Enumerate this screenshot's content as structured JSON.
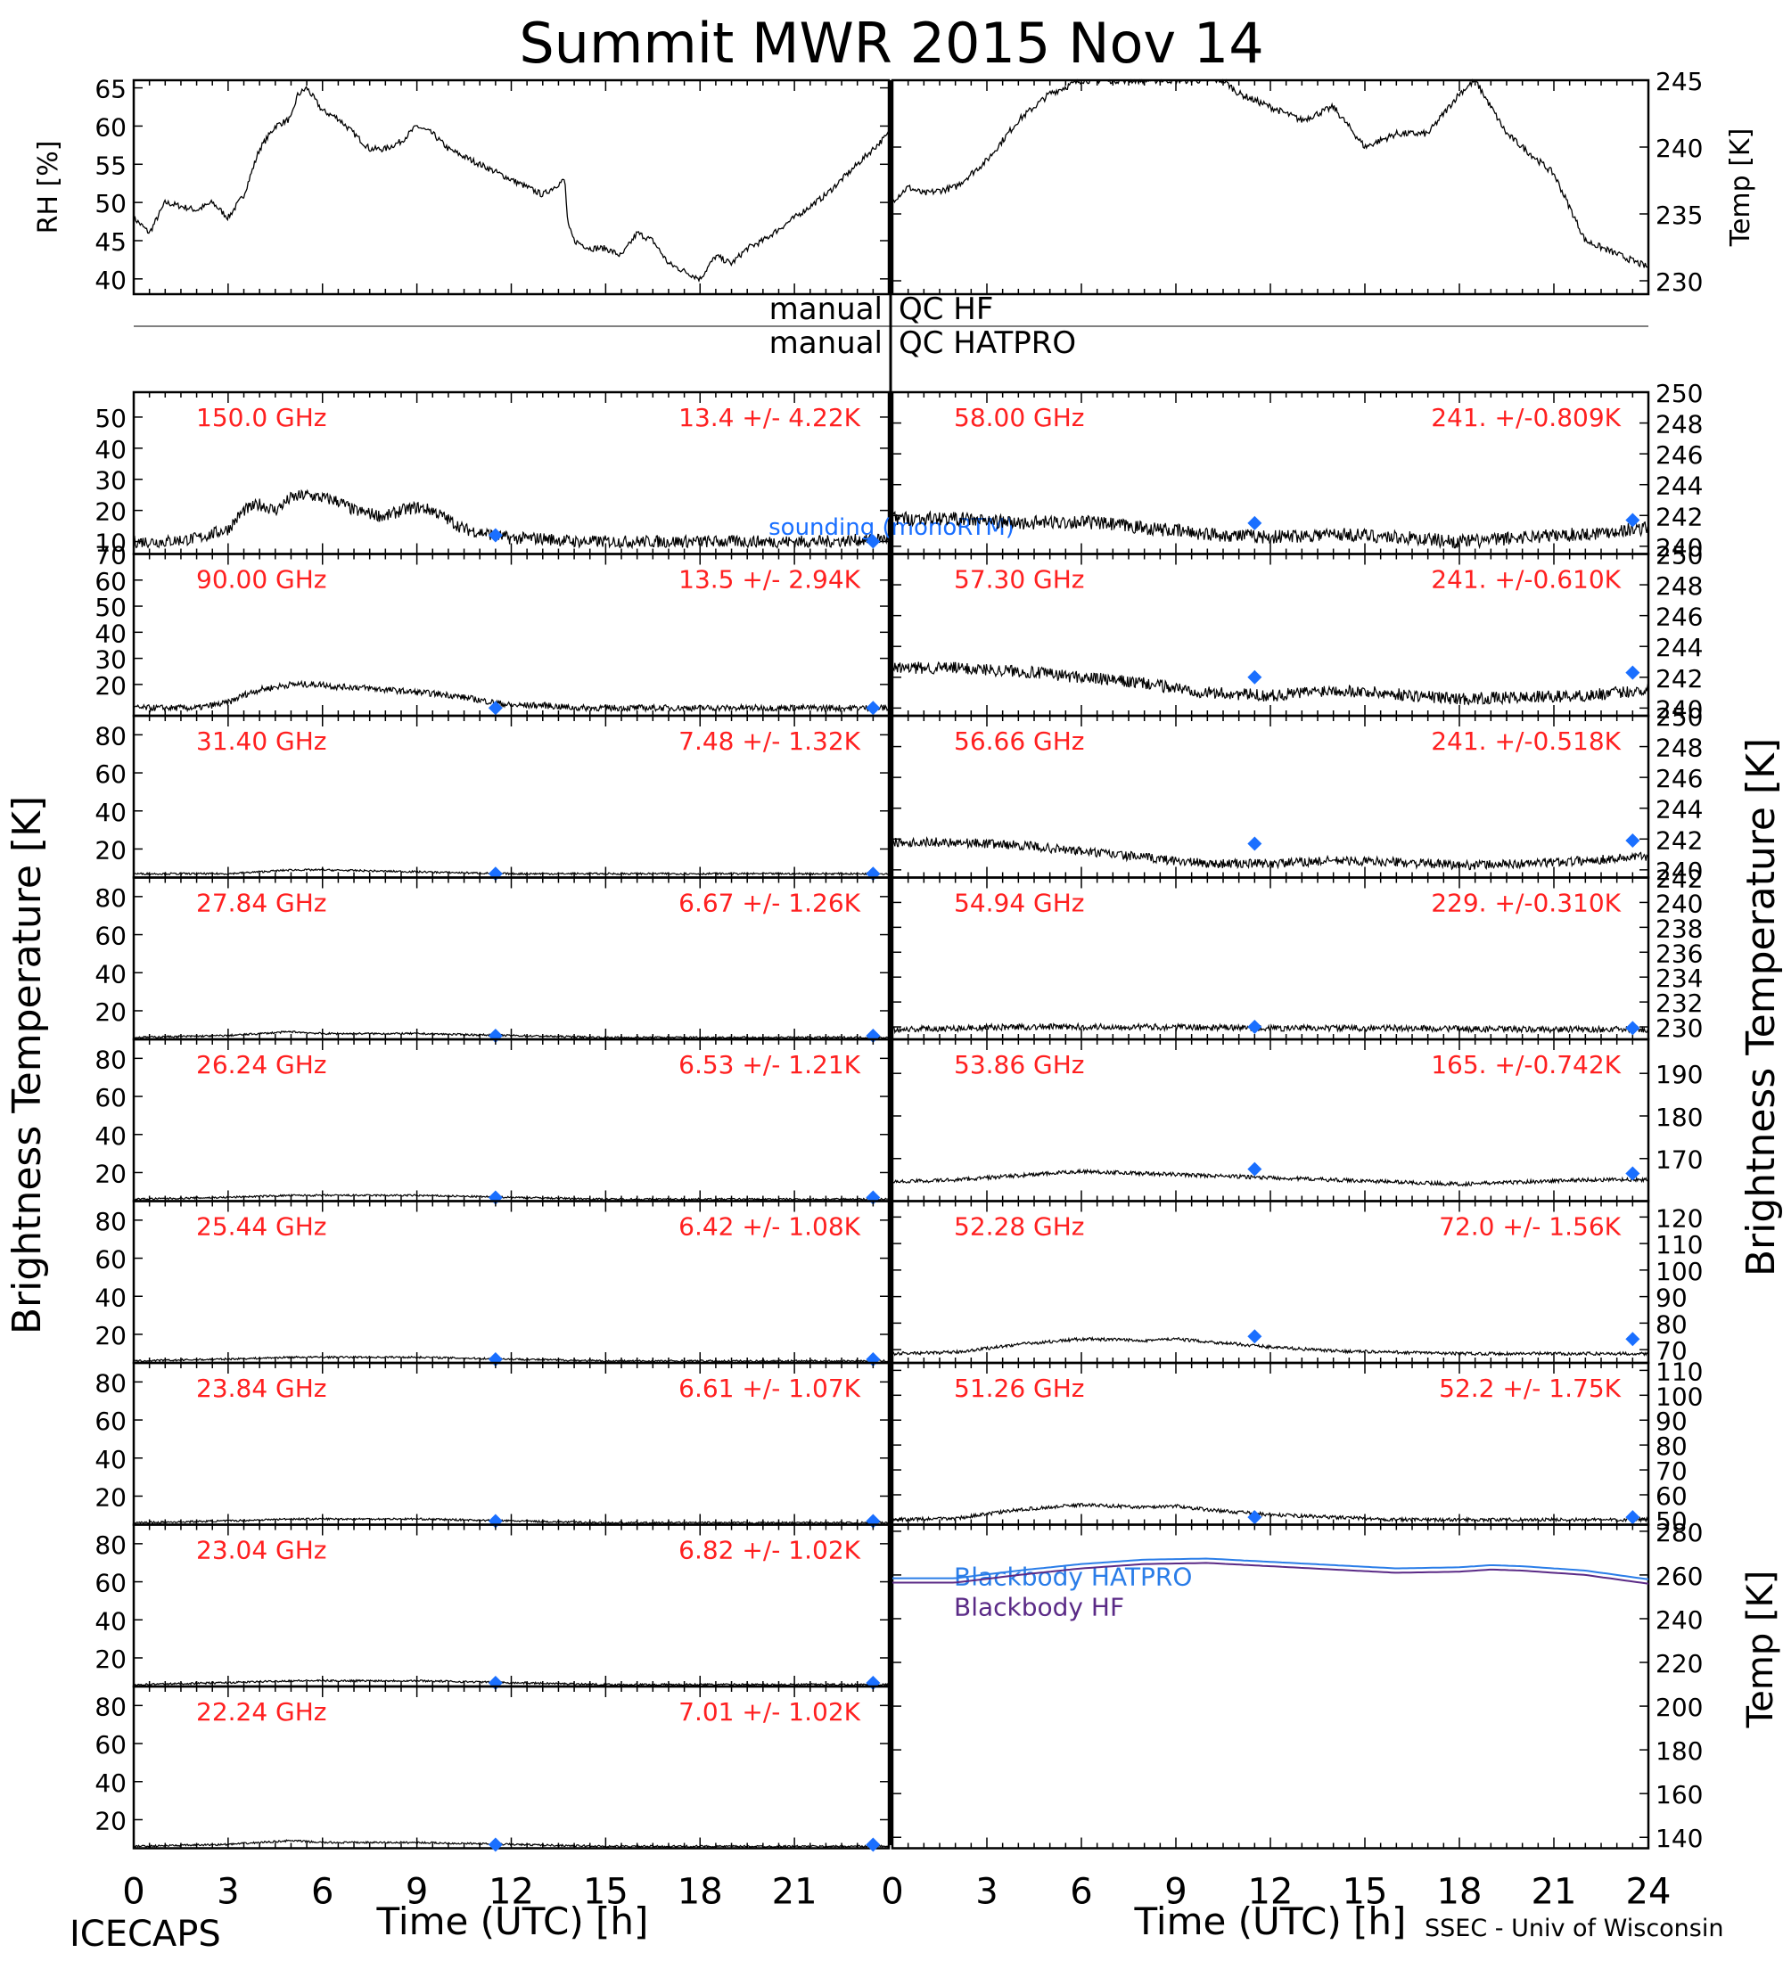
{
  "title": "Summit MWR 2015 Nov 14",
  "footer": {
    "left": "ICECAPS",
    "right": "SSEC - Univ of Wisconsin"
  },
  "colors": {
    "ink": "#000000",
    "freq": "#ff2020",
    "sounding": "#1a6fff",
    "hatpro": "#2a7de8",
    "hf": "#5a2a86"
  },
  "xlabel": "Time (UTC) [h]",
  "xticks": [
    "0",
    "3",
    "6",
    "9",
    "12",
    "15",
    "18",
    "21",
    "0",
    "3",
    "6",
    "9",
    "12",
    "15",
    "18",
    "21",
    "24"
  ],
  "left_ylabel": "Brightness Temperature [K]",
  "right_ylabel": "Brightness Temperature [K]",
  "qc": {
    "label1": "manual",
    "value1": "QC HF",
    "label2": "manual",
    "value2": "QC HATPRO"
  },
  "chart_data": {
    "type": "line",
    "x_range_hours": [
      0,
      24
    ],
    "sounding_times_h": [
      11.5,
      23.5
    ],
    "met": {
      "rh": {
        "ylabel": "RH [%]",
        "ylim": [
          38,
          66
        ],
        "ticks": [
          40,
          45,
          50,
          55,
          60,
          65
        ],
        "x": [
          0,
          0.5,
          1,
          2,
          2.5,
          3,
          3.5,
          4,
          4.5,
          5,
          5.2,
          5.5,
          6,
          6.5,
          7,
          7.5,
          8,
          8.5,
          9,
          9.5,
          10,
          11,
          12,
          13,
          13.7,
          13.8,
          14,
          14.5,
          15,
          15.5,
          16,
          16.5,
          17,
          17.5,
          18,
          18.5,
          19,
          19.5,
          20,
          21,
          22,
          23,
          24
        ],
        "y": [
          48,
          46,
          50,
          49,
          50,
          48,
          51,
          57,
          60,
          61,
          64,
          65,
          62,
          61,
          59,
          57,
          57,
          58,
          60,
          59,
          57,
          55,
          53,
          51,
          53,
          47,
          45,
          44,
          44,
          43,
          46,
          45,
          42,
          41,
          40,
          43,
          42,
          44,
          45,
          48,
          51,
          55,
          59
        ]
      },
      "temp": {
        "ylabel": "Temp [K]",
        "ylim": [
          229,
          245
        ],
        "ticks": [
          230,
          235,
          240,
          245
        ],
        "x": [
          0,
          0.5,
          1,
          2,
          3,
          4,
          5,
          6,
          7,
          8,
          9,
          10,
          10.5,
          11,
          12,
          13,
          14,
          15,
          16,
          17,
          18,
          18.5,
          19,
          19.5,
          20,
          21,
          22,
          23,
          24
        ],
        "y": [
          236,
          237,
          236.5,
          237,
          239,
          242,
          244,
          245,
          245,
          245,
          245,
          245,
          245,
          244,
          243,
          242,
          243,
          240,
          241,
          241,
          244,
          245,
          243,
          241,
          240,
          238,
          233,
          232,
          231
        ]
      }
    },
    "left_panels": [
      {
        "freq": "150.0 GHz",
        "stat": "13.4 +/-  4.22K",
        "ylim": [
          6,
          58
        ],
        "ticks": [
          10,
          20,
          30,
          40,
          50
        ],
        "x": [
          0,
          1,
          2,
          3,
          3.5,
          4,
          4.5,
          5,
          5.5,
          6,
          6.5,
          7,
          7.5,
          8,
          8.5,
          9,
          9.5,
          10,
          10.5,
          11,
          12,
          13,
          14,
          16,
          18,
          20,
          22,
          24
        ],
        "y": [
          10,
          10,
          11,
          14,
          20,
          22,
          20,
          24,
          25,
          24,
          23,
          20,
          19,
          18,
          20,
          21,
          20,
          17,
          14,
          13,
          11,
          11,
          10,
          10,
          10,
          10,
          10,
          11
        ],
        "noise": 2.0,
        "sounding": [
          12,
          10
        ]
      },
      {
        "freq": "90.00 GHz",
        "stat": "13.5 +/-  2.94K",
        "ylim": [
          8,
          70
        ],
        "ticks": [
          20,
          30,
          40,
          50,
          60,
          70
        ],
        "x": [
          0,
          1,
          2,
          3,
          3.5,
          4,
          5,
          6,
          6.5,
          7,
          8,
          9,
          10,
          11,
          12,
          13,
          14,
          16,
          18,
          20,
          22,
          24
        ],
        "y": [
          11,
          11,
          11,
          13,
          16,
          18,
          20,
          20,
          19,
          19,
          18,
          17,
          16,
          14,
          12,
          12,
          11,
          11,
          11,
          11,
          11,
          11
        ],
        "noise": 1.2,
        "sounding": [
          11,
          11
        ]
      },
      {
        "freq": "31.40 GHz",
        "stat": "7.48 +/- 1.32K",
        "ylim": [
          5,
          90
        ],
        "ticks": [
          20,
          40,
          60,
          80
        ],
        "x": [
          0,
          3,
          5,
          6,
          9,
          12,
          15,
          18,
          21,
          24
        ],
        "y": [
          7,
          7,
          9,
          9,
          8,
          7,
          7,
          7,
          7,
          7
        ],
        "noise": 0.5,
        "sounding": [
          7,
          7
        ]
      },
      {
        "freq": "27.84 GHz",
        "stat": "6.67 +/- 1.26K",
        "ylim": [
          5,
          90
        ],
        "ticks": [
          20,
          40,
          60,
          80
        ],
        "x": [
          0,
          3,
          5,
          6,
          9,
          12,
          15,
          18,
          21,
          24
        ],
        "y": [
          6,
          7,
          9,
          8,
          8,
          7,
          6,
          6,
          6,
          6
        ],
        "noise": 0.5,
        "sounding": [
          6.5,
          6.5
        ]
      },
      {
        "freq": "26.24 GHz",
        "stat": "6.53 +/- 1.21K",
        "ylim": [
          5,
          90
        ],
        "ticks": [
          20,
          40,
          60,
          80
        ],
        "x": [
          0,
          3,
          5,
          6,
          9,
          12,
          15,
          18,
          21,
          24
        ],
        "y": [
          6,
          7,
          8,
          8,
          8,
          7,
          6,
          6,
          6,
          6
        ],
        "noise": 0.5,
        "sounding": [
          6.5,
          6.5
        ]
      },
      {
        "freq": "25.44 GHz",
        "stat": "6.42 +/- 1.08K",
        "ylim": [
          5,
          90
        ],
        "ticks": [
          20,
          40,
          60,
          80
        ],
        "x": [
          0,
          3,
          5,
          6,
          9,
          12,
          15,
          18,
          21,
          24
        ],
        "y": [
          6,
          7,
          8,
          8,
          8,
          7,
          6,
          6,
          6,
          6
        ],
        "noise": 0.5,
        "sounding": [
          6.5,
          6.5
        ]
      },
      {
        "freq": "23.84 GHz",
        "stat": "6.61 +/- 1.07K",
        "ylim": [
          5,
          90
        ],
        "ticks": [
          20,
          40,
          60,
          80
        ],
        "x": [
          0,
          3,
          5,
          6,
          9,
          12,
          15,
          18,
          21,
          24
        ],
        "y": [
          6,
          7,
          8,
          8,
          8,
          7,
          6,
          6,
          6,
          6
        ],
        "noise": 0.5,
        "sounding": [
          6.5,
          6.5
        ]
      },
      {
        "freq": "23.04 GHz",
        "stat": "6.82 +/- 1.02K",
        "ylim": [
          5,
          90
        ],
        "ticks": [
          20,
          40,
          60,
          80
        ],
        "x": [
          0,
          3,
          5,
          6,
          9,
          12,
          15,
          18,
          21,
          24
        ],
        "y": [
          6,
          7,
          8,
          8,
          8,
          7,
          6,
          6,
          6,
          6
        ],
        "noise": 0.5,
        "sounding": [
          6.5,
          6.5
        ]
      },
      {
        "freq": "22.24 GHz",
        "stat": "7.01 +/- 1.02K",
        "ylim": [
          5,
          90
        ],
        "ticks": [
          20,
          40,
          60,
          80
        ],
        "x": [
          0,
          3,
          5,
          6,
          9,
          12,
          15,
          18,
          21,
          24
        ],
        "y": [
          6,
          7,
          9,
          8,
          8,
          7,
          6,
          6,
          6,
          6
        ],
        "noise": 0.5,
        "sounding": [
          6.5,
          6.5
        ]
      }
    ],
    "right_panels": [
      {
        "freq": "58.00 GHz",
        "stat": "241. +/-0.809K",
        "ylim": [
          239.5,
          250
        ],
        "ticks": [
          240,
          242,
          244,
          246,
          248,
          250
        ],
        "x": [
          0,
          2,
          4,
          6,
          8,
          10,
          12,
          14,
          16,
          18,
          19,
          20,
          22,
          24
        ],
        "y": [
          241.8,
          241.8,
          241.5,
          241.6,
          241.2,
          240.8,
          240.6,
          240.8,
          240.6,
          240.3,
          240.4,
          240.6,
          240.8,
          241.2
        ],
        "noise": 0.45,
        "sounding": [
          241.5,
          241.7
        ]
      },
      {
        "freq": "57.30 GHz",
        "stat": "241. +/-0.610K",
        "ylim": [
          239.5,
          250
        ],
        "ticks": [
          240,
          242,
          244,
          246,
          248,
          250
        ],
        "x": [
          0,
          2,
          4,
          6,
          8,
          10,
          12,
          14,
          16,
          18,
          20,
          22,
          24
        ],
        "y": [
          242.6,
          242.6,
          242.4,
          242.0,
          241.6,
          241.0,
          240.8,
          241.2,
          240.9,
          240.6,
          240.7,
          240.8,
          241.2
        ],
        "noise": 0.4,
        "sounding": [
          242.0,
          242.3
        ]
      },
      {
        "freq": "56.66 GHz",
        "stat": "241. +/-0.518K",
        "ylim": [
          239.5,
          250
        ],
        "ticks": [
          240,
          242,
          244,
          246,
          248,
          250
        ],
        "x": [
          0,
          2,
          4,
          6,
          8,
          10,
          12,
          14,
          16,
          18,
          20,
          22,
          24
        ],
        "y": [
          241.8,
          241.8,
          241.6,
          241.2,
          240.8,
          240.4,
          240.4,
          240.6,
          240.5,
          240.3,
          240.4,
          240.6,
          240.9
        ],
        "noise": 0.3,
        "sounding": [
          241.7,
          241.9
        ]
      },
      {
        "freq": "54.94 GHz",
        "stat": "229. +/-0.310K",
        "ylim": [
          229,
          242
        ],
        "ticks": [
          230,
          232,
          234,
          236,
          238,
          240,
          242
        ],
        "x": [
          0,
          4,
          8,
          12,
          16,
          20,
          24
        ],
        "y": [
          229.8,
          230.0,
          230.0,
          229.9,
          229.9,
          229.8,
          229.8
        ],
        "noise": 0.25,
        "sounding": [
          230.0,
          229.9
        ]
      },
      {
        "freq": "53.86 GHz",
        "stat": "165. +/-0.742K",
        "ylim": [
          160,
          198
        ],
        "ticks": [
          170,
          180,
          190
        ],
        "x": [
          0,
          2,
          4,
          6,
          8,
          10,
          12,
          14,
          16,
          18,
          20,
          22,
          24
        ],
        "y": [
          164.5,
          165,
          166,
          167,
          166.5,
          166,
          165.5,
          165,
          164.5,
          164,
          164.5,
          165,
          165
        ],
        "noise": 0.45,
        "sounding": [
          167.5,
          166.5
        ]
      },
      {
        "freq": "52.28 GHz",
        "stat": "72.0 +/-  1.56K",
        "ylim": [
          65,
          126
        ],
        "ticks": [
          70,
          80,
          90,
          100,
          110,
          120
        ],
        "x": [
          0,
          2,
          4,
          6,
          8,
          9,
          10,
          12,
          14,
          16,
          18,
          20,
          22,
          24
        ],
        "y": [
          68.5,
          69,
          72,
          74,
          73.5,
          74,
          73,
          71,
          69.5,
          69,
          68.5,
          68.5,
          68.5,
          68.5
        ],
        "noise": 0.6,
        "sounding": [
          75,
          74
        ]
      },
      {
        "freq": "51.26 GHz",
        "stat": "52.2 +/-  1.75K",
        "ylim": [
          48,
          113
        ],
        "ticks": [
          50,
          60,
          70,
          80,
          90,
          100,
          110
        ],
        "x": [
          0,
          2,
          4,
          6,
          8,
          9,
          10,
          12,
          14,
          16,
          18,
          20,
          22,
          24
        ],
        "y": [
          50,
          50.5,
          54,
          56,
          55,
          55.5,
          54,
          52,
          51,
          50,
          50,
          50,
          50,
          50
        ],
        "noise": 0.7,
        "sounding": [
          51,
          51
        ]
      }
    ],
    "blackbody": {
      "ylabel": "Temp [K]",
      "ylim": [
        135,
        283
      ],
      "ticks": [
        140,
        160,
        180,
        200,
        220,
        240,
        260,
        280
      ],
      "series": [
        {
          "name": "Blackbody HATPRO",
          "color": "#2a7de8",
          "x": [
            0,
            2,
            4,
            6,
            8,
            10,
            12,
            14,
            16,
            18,
            19,
            20,
            22,
            24
          ],
          "y": [
            258.5,
            258.5,
            262,
            265,
            267,
            267.5,
            266,
            264.5,
            263,
            263.5,
            264.5,
            264,
            262,
            258
          ]
        },
        {
          "name": "Blackbody HF",
          "color": "#5a2a86",
          "x": [
            0,
            2,
            4,
            6,
            8,
            10,
            12,
            14,
            16,
            18,
            19,
            20,
            22,
            24
          ],
          "y": [
            256.5,
            256.5,
            260,
            263,
            265,
            265.5,
            264,
            262.5,
            261,
            261.5,
            262.5,
            262,
            260,
            256
          ]
        }
      ]
    }
  }
}
